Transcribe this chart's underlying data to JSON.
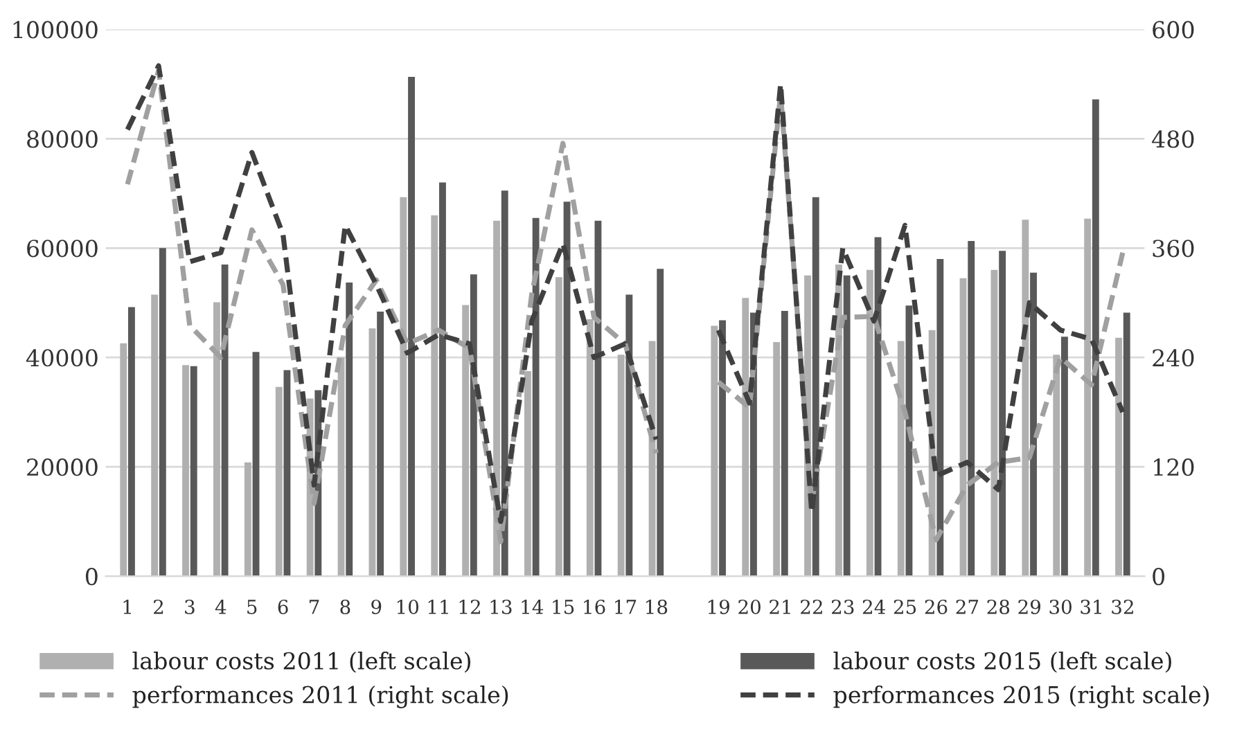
{
  "chart_data": {
    "type": "bar",
    "categories": [
      "1",
      "2",
      "3",
      "4",
      "5",
      "6",
      "7",
      "8",
      "9",
      "10",
      "11",
      "12",
      "13",
      "14",
      "15",
      "16",
      "17",
      "18",
      null,
      "19",
      "20",
      "21",
      "22",
      "23",
      "24",
      "25",
      "26",
      "27",
      "28",
      "29",
      "30",
      "31",
      "32"
    ],
    "series": [
      {
        "name": "labour costs 2011 (left scale)",
        "color": "#b0b0b0",
        "values": [
          42600,
          51500,
          38600,
          50100,
          20800,
          34600,
          32500,
          40000,
          45300,
          69300,
          66000,
          49600,
          65000,
          37500,
          54700,
          47000,
          40500,
          43000,
          null,
          45800,
          50900,
          42800,
          55000,
          57000,
          56000,
          43000,
          45000,
          54500,
          56000,
          65200,
          40500,
          65400,
          43600
        ]
      },
      {
        "name": "labour costs 2015 (left scale)",
        "color": "#595959",
        "values": [
          49200,
          60000,
          38400,
          57000,
          41000,
          37700,
          34000,
          53700,
          48400,
          91300,
          72000,
          55200,
          70500,
          65500,
          68500,
          65000,
          51500,
          56200,
          null,
          46800,
          48200,
          48500,
          69300,
          55000,
          62000,
          49500,
          58000,
          61300,
          59500,
          55500,
          43800,
          87200,
          48200
        ]
      },
      {
        "name": "performances 2011 (right scale)",
        "type": "line",
        "axis": "y2",
        "line_style": "dashed",
        "color": "#a0a0a0",
        "values": [
          430,
          555,
          275,
          240,
          380,
          320,
          80,
          275,
          325,
          255,
          270,
          250,
          38,
          310,
          475,
          284,
          255,
          135,
          null,
          213,
          185,
          530,
          80,
          284,
          285,
          180,
          40,
          100,
          125,
          130,
          240,
          210,
          355
        ]
      },
      {
        "name": "performances 2015 (right scale)",
        "type": "line",
        "axis": "y2",
        "line_style": "dashed",
        "color": "#404040",
        "values": [
          490,
          560,
          345,
          355,
          465,
          375,
          100,
          385,
          320,
          245,
          265,
          255,
          60,
          280,
          365,
          240,
          255,
          150,
          null,
          270,
          190,
          540,
          70,
          360,
          280,
          385,
          110,
          125,
          95,
          300,
          270,
          260,
          180
        ]
      }
    ],
    "ylim": [
      0,
      100000
    ],
    "yticks": [
      0,
      20000,
      40000,
      60000,
      80000,
      100000
    ],
    "y2lim": [
      0,
      600
    ],
    "y2ticks": [
      0,
      120,
      240,
      360,
      480,
      600
    ],
    "grid": "y",
    "legend": "bottom"
  }
}
